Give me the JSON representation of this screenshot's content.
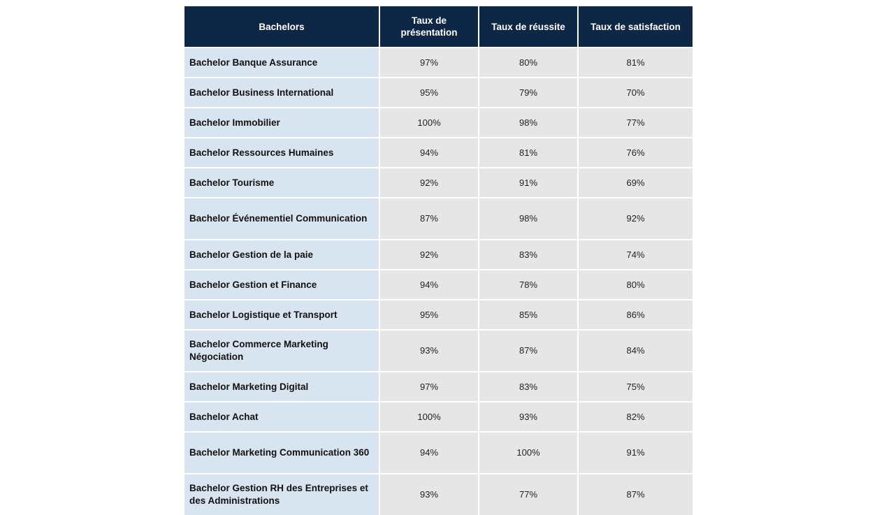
{
  "table": {
    "headers": {
      "bachelors": "Bachelors",
      "presentation": "Taux de présentation",
      "reussite": "Taux de réussite",
      "satisfaction": "Taux de satisfaction"
    },
    "rows": [
      {
        "name": "Bachelor Banque Assurance",
        "presentation": "97%",
        "reussite": "80%",
        "satisfaction": "81%"
      },
      {
        "name": "Bachelor Business International",
        "presentation": "95%",
        "reussite": "79%",
        "satisfaction": "70%"
      },
      {
        "name": "Bachelor Immobilier",
        "presentation": "100%",
        "reussite": "98%",
        "satisfaction": "77%"
      },
      {
        "name": "Bachelor Ressources Humaines",
        "presentation": "94%",
        "reussite": "81%",
        "satisfaction": "76%"
      },
      {
        "name": "Bachelor Tourisme",
        "presentation": "92%",
        "reussite": "91%",
        "satisfaction": "69%"
      },
      {
        "name": "Bachelor Événementiel Communication",
        "presentation": "87%",
        "reussite": "98%",
        "satisfaction": "92%"
      },
      {
        "name": "Bachelor Gestion de la paie",
        "presentation": "92%",
        "reussite": "83%",
        "satisfaction": "74%"
      },
      {
        "name": "Bachelor Gestion et Finance",
        "presentation": "94%",
        "reussite": "78%",
        "satisfaction": "80%"
      },
      {
        "name": "Bachelor Logistique et Transport",
        "presentation": "95%",
        "reussite": "85%",
        "satisfaction": "86%"
      },
      {
        "name": "Bachelor Commerce Marketing Négociation",
        "presentation": "93%",
        "reussite": "87%",
        "satisfaction": "84%"
      },
      {
        "name": "Bachelor Marketing Digital",
        "presentation": "97%",
        "reussite": "83%",
        "satisfaction": "75%"
      },
      {
        "name": "Bachelor Achat",
        "presentation": "100%",
        "reussite": "93%",
        "satisfaction": "82%"
      },
      {
        "name": "Bachelor Marketing Communication 360",
        "presentation": "94%",
        "reussite": "100%",
        "satisfaction": "91%"
      },
      {
        "name": "Bachelor Gestion RH des Entreprises et des Administrations",
        "presentation": "93%",
        "reussite": "77%",
        "satisfaction": "87%"
      }
    ]
  }
}
